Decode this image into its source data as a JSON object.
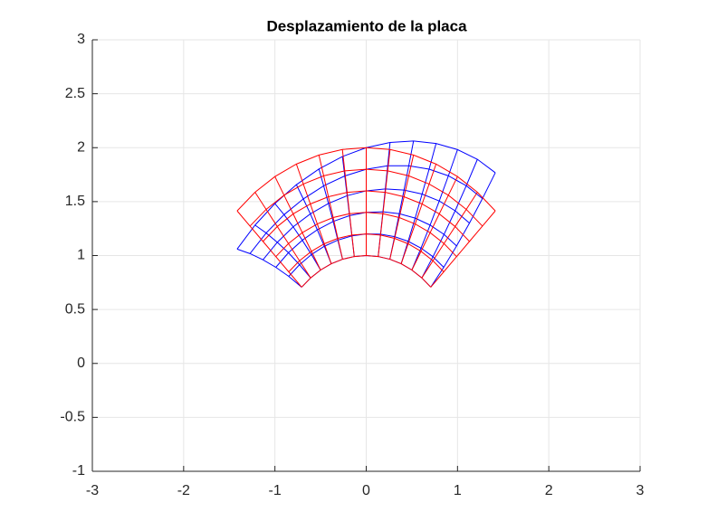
{
  "chart_data": {
    "type": "mesh",
    "title": "Desplazamiento de la placa",
    "xlim": [
      -3,
      3
    ],
    "xticks": [
      -3,
      -2,
      -1,
      0,
      1,
      2,
      3
    ],
    "ylim": [
      -1,
      3
    ],
    "yticks": [
      -1,
      -0.5,
      0,
      0.5,
      1,
      1.5,
      2,
      2.5,
      3
    ],
    "grid": true,
    "series": [
      {
        "color": "#0000ff",
        "x": [
          [
            0.707,
            0.609,
            0.5,
            0.383,
            0.259,
            0.131,
            0,
            -0.131,
            -0.259,
            -0.383,
            -0.5,
            -0.609,
            -0.707
          ],
          [
            0.849,
            0.731,
            0.6,
            0.459,
            0.311,
            0.157,
            0,
            -0.157,
            -0.311,
            -0.459,
            -0.6,
            -0.731,
            -0.849
          ],
          [
            0.99,
            0.852,
            0.7,
            0.536,
            0.362,
            0.183,
            0,
            -0.183,
            -0.362,
            -0.536,
            -0.7,
            -0.852,
            -0.99
          ],
          [
            1.131,
            0.974,
            0.8,
            0.612,
            0.414,
            0.209,
            0,
            -0.209,
            -0.414,
            -0.612,
            -0.8,
            -0.974,
            -1.131
          ],
          [
            1.273,
            1.096,
            0.9,
            0.689,
            0.466,
            0.235,
            0,
            -0.235,
            -0.466,
            -0.689,
            -0.9,
            -1.096,
            -1.273
          ],
          [
            1.414,
            1.218,
            1,
            0.765,
            0.518,
            0.261,
            0,
            -0.261,
            -0.518,
            -0.765,
            -1,
            -1.218,
            -1.414
          ]
        ],
        "y": [
          [
            0.707,
            0.793,
            0.866,
            0.924,
            0.966,
            0.991,
            1,
            0.991,
            0.966,
            0.924,
            0.866,
            0.793,
            0.707
          ],
          [
            0.891,
            0.989,
            1.069,
            1.132,
            1.175,
            1.198,
            1.2,
            1.182,
            1.143,
            1.086,
            1.009,
            0.915,
            0.807
          ],
          [
            1.089,
            1.196,
            1.282,
            1.347,
            1.388,
            1.406,
            1.4,
            1.37,
            1.316,
            1.239,
            1.142,
            1.026,
            0.891
          ],
          [
            1.301,
            1.415,
            1.506,
            1.57,
            1.607,
            1.617,
            1.6,
            1.555,
            1.483,
            1.386,
            1.266,
            1.123,
            0.961
          ],
          [
            1.528,
            1.647,
            1.739,
            1.801,
            1.832,
            1.832,
            1.8,
            1.738,
            1.646,
            1.525,
            1.379,
            1.209,
            1.018
          ],
          [
            1.768,
            1.892,
            1.982,
            2.039,
            2.062,
            2.048,
            2,
            1.918,
            1.802,
            1.657,
            1.482,
            1.282,
            1.06
          ]
        ]
      },
      {
        "color": "#ff0000",
        "x": [
          [
            0.707,
            0.609,
            0.5,
            0.383,
            0.259,
            0.131,
            0,
            -0.131,
            -0.259,
            -0.383,
            -0.5,
            -0.609,
            -0.707
          ],
          [
            0.849,
            0.731,
            0.6,
            0.459,
            0.311,
            0.157,
            0,
            -0.157,
            -0.311,
            -0.459,
            -0.6,
            -0.731,
            -0.849
          ],
          [
            0.99,
            0.852,
            0.7,
            0.536,
            0.362,
            0.183,
            0,
            -0.183,
            -0.362,
            -0.536,
            -0.7,
            -0.852,
            -0.99
          ],
          [
            1.131,
            0.974,
            0.8,
            0.612,
            0.414,
            0.209,
            0,
            -0.209,
            -0.414,
            -0.612,
            -0.8,
            -0.974,
            -1.131
          ],
          [
            1.273,
            1.096,
            0.9,
            0.689,
            0.466,
            0.235,
            0,
            -0.235,
            -0.466,
            -0.689,
            -0.9,
            -1.096,
            -1.273
          ],
          [
            1.414,
            1.218,
            1,
            0.765,
            0.518,
            0.261,
            0,
            -0.261,
            -0.518,
            -0.765,
            -1,
            -1.218,
            -1.414
          ]
        ],
        "y": [
          [
            0.707,
            0.793,
            0.866,
            0.924,
            0.966,
            0.991,
            1,
            0.991,
            0.966,
            0.924,
            0.866,
            0.793,
            0.707
          ],
          [
            0.849,
            0.952,
            1.039,
            1.109,
            1.159,
            1.19,
            1.2,
            1.19,
            1.159,
            1.109,
            1.039,
            0.952,
            0.849
          ],
          [
            0.99,
            1.111,
            1.212,
            1.293,
            1.352,
            1.388,
            1.4,
            1.388,
            1.352,
            1.293,
            1.212,
            1.111,
            0.99
          ],
          [
            1.131,
            1.269,
            1.386,
            1.478,
            1.545,
            1.586,
            1.6,
            1.586,
            1.545,
            1.478,
            1.386,
            1.269,
            1.131
          ],
          [
            1.273,
            1.428,
            1.559,
            1.663,
            1.739,
            1.785,
            1.8,
            1.785,
            1.739,
            1.663,
            1.559,
            1.428,
            1.273
          ],
          [
            1.414,
            1.587,
            1.732,
            1.848,
            1.932,
            1.983,
            2,
            1.983,
            1.932,
            1.848,
            1.732,
            1.587,
            1.414
          ]
        ]
      }
    ]
  }
}
